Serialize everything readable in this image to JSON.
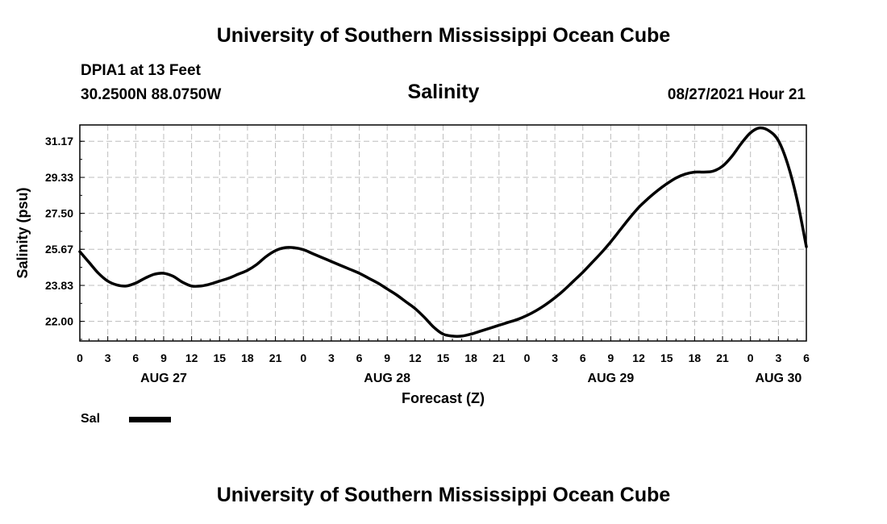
{
  "header": {
    "top_title": "University of Southern Mississippi Ocean Cube",
    "station": "DPIA1 at 13 Feet",
    "coords": "30.2500N  88.0750W",
    "timestamp": "08/27/2021 Hour 21",
    "bottom_title": "University of Southern Mississippi Ocean Cube"
  },
  "legend": {
    "label": "Sal",
    "color": "#000000"
  },
  "chart_data": {
    "type": "line",
    "title": "Salinity",
    "xlabel": "Forecast (Z)",
    "ylabel": "Salinity (psu)",
    "ylim": [
      21.0,
      32.0
    ],
    "xlim": [
      0,
      78
    ],
    "grid": true,
    "legend_position": "bottom-left",
    "ytick_labels": [
      "22.00",
      "23.83",
      "25.67",
      "27.50",
      "29.33",
      "31.17"
    ],
    "ytick_values": [
      22.0,
      23.83,
      25.67,
      27.5,
      29.33,
      31.17
    ],
    "xtick_labels": [
      "0",
      "3",
      "6",
      "9",
      "12",
      "15",
      "18",
      "21",
      "0",
      "3",
      "6",
      "9",
      "12",
      "15",
      "18",
      "21",
      "0",
      "3",
      "6",
      "9",
      "12",
      "15",
      "18",
      "21",
      "0",
      "3",
      "6"
    ],
    "date_labels": [
      {
        "label": "AUG 27",
        "hour": 9
      },
      {
        "label": "AUG 28",
        "hour": 33
      },
      {
        "label": "AUG 29",
        "hour": 57
      },
      {
        "label": "AUG 30",
        "hour": 75
      }
    ],
    "series": [
      {
        "name": "Sal",
        "x": [
          0,
          1,
          2,
          3,
          4,
          5,
          6,
          7,
          8,
          9,
          10,
          11,
          12,
          13,
          14,
          15,
          16,
          17,
          18,
          19,
          20,
          21,
          22,
          23,
          24,
          25,
          26,
          27,
          28,
          29,
          30,
          31,
          32,
          33,
          34,
          35,
          36,
          37,
          38,
          39,
          40,
          41,
          42,
          43,
          44,
          45,
          46,
          47,
          48,
          49,
          50,
          51,
          52,
          53,
          54,
          55,
          56,
          57,
          58,
          59,
          60,
          61,
          62,
          63,
          64,
          65,
          66,
          67,
          68,
          69,
          70,
          71,
          72,
          73,
          74,
          75,
          76,
          77,
          78
        ],
        "values": [
          25.55,
          25.0,
          24.45,
          24.05,
          23.85,
          23.8,
          23.95,
          24.2,
          24.4,
          24.45,
          24.3,
          24.0,
          23.8,
          23.8,
          23.9,
          24.05,
          24.2,
          24.4,
          24.6,
          24.9,
          25.3,
          25.6,
          25.75,
          25.75,
          25.65,
          25.45,
          25.25,
          25.05,
          24.85,
          24.65,
          24.45,
          24.2,
          23.95,
          23.65,
          23.35,
          23.0,
          22.65,
          22.2,
          21.7,
          21.35,
          21.25,
          21.25,
          21.35,
          21.5,
          21.65,
          21.8,
          21.95,
          22.1,
          22.3,
          22.55,
          22.85,
          23.2,
          23.6,
          24.05,
          24.5,
          25.0,
          25.5,
          26.05,
          26.65,
          27.25,
          27.8,
          28.25,
          28.65,
          29.0,
          29.3,
          29.5,
          29.6,
          29.6,
          29.65,
          29.9,
          30.4,
          31.05,
          31.6,
          31.85,
          31.7,
          31.2,
          30.0,
          28.2,
          25.8
        ]
      }
    ]
  }
}
